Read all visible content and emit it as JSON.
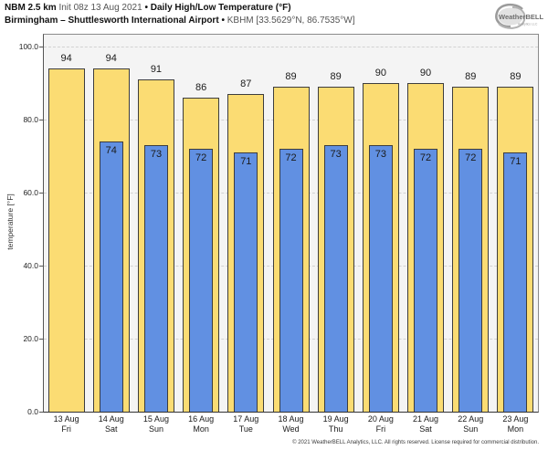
{
  "header": {
    "model": "NBM 2.5 km",
    "init": "Init 08z 13 Aug 2021",
    "bullet": "•",
    "product": "Daily High/Low Temperature (°F)",
    "station": "Birmingham – Shuttlesworth International Airport",
    "station_id": "KBHM [33.5629°N, 86.7535°W]",
    "logo": "WeatherBELL",
    "logo_sub": "Analytics LLC"
  },
  "footer": {
    "copyright": "© 2021 WeatherBELL Analytics, LLC. All rights reserved. License required for commercial distribution."
  },
  "chart_data": {
    "type": "bar",
    "title": "NBM 2.5 km Daily High/Low Temperature (°F) — Birmingham – Shuttlesworth International Airport (KBHM)",
    "xlabel": "",
    "ylabel": "temperature [°F]",
    "ylim": [
      0,
      103.25
    ],
    "yticks": [
      0,
      20,
      40,
      60,
      80,
      100
    ],
    "ytick_labels": [
      "0.0",
      "20.0",
      "40.0",
      "60.0",
      "80.0",
      "100.0"
    ],
    "grid": "horizontal-dashed",
    "legend_position": "none",
    "x_dates": [
      "13 Aug",
      "14 Aug",
      "15 Aug",
      "16 Aug",
      "17 Aug",
      "18 Aug",
      "19 Aug",
      "20 Aug",
      "21 Aug",
      "22 Aug",
      "23 Aug"
    ],
    "x_days": [
      "Fri",
      "Sat",
      "Sun",
      "Mon",
      "Tue",
      "Wed",
      "Thu",
      "Fri",
      "Sat",
      "Sun",
      "Mon"
    ],
    "series": [
      {
        "name": "daily-high",
        "values": [
          94,
          94,
          91,
          86,
          87,
          89,
          89,
          90,
          90,
          89,
          89
        ]
      },
      {
        "name": "daily-low",
        "values": [
          null,
          74,
          73,
          72,
          71,
          72,
          73,
          73,
          72,
          72,
          71
        ]
      }
    ],
    "colors": {
      "high_fill": "#FBDC73",
      "low_fill": "#6190E2",
      "bar_border": "#3d3d3d",
      "plot_bg": "#F4F4F4",
      "grid_color": "#d2d2d2"
    }
  }
}
